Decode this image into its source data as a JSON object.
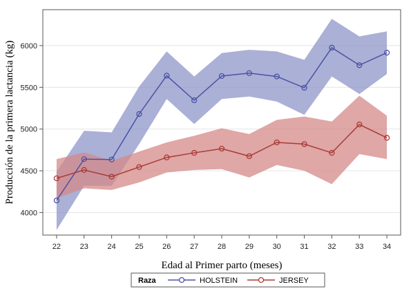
{
  "chart_data": {
    "type": "line",
    "title": "",
    "xlabel": "Edad al Primer parto (meses)",
    "ylabel": "Producción de la primera lactancia (kg)",
    "x": [
      22,
      23,
      24,
      25,
      26,
      27,
      28,
      29,
      30,
      31,
      32,
      33,
      34
    ],
    "xlim": [
      21.5,
      34.5
    ],
    "ylim": [
      3730,
      6430
    ],
    "yticks": [
      4000,
      4500,
      5000,
      5500,
      6000
    ],
    "grid": true,
    "legend_title": "Raza",
    "legend_position": "bottom",
    "series": [
      {
        "name": "HOLSTEIN",
        "color": "#4a52a3",
        "band_color": "#8f96c8",
        "values": [
          4145,
          4640,
          4635,
          5180,
          5640,
          5345,
          5635,
          5670,
          5630,
          5495,
          5975,
          5765,
          5915
        ],
        "lower": [
          3790,
          4320,
          4320,
          4820,
          5360,
          5060,
          5360,
          5390,
          5330,
          5170,
          5630,
          5420,
          5660
        ],
        "upper": [
          4490,
          4980,
          4960,
          5510,
          5930,
          5630,
          5910,
          5950,
          5930,
          5830,
          6320,
          6110,
          6170
        ]
      },
      {
        "name": "JERSEY",
        "color": "#a83a36",
        "band_color": "#d48a88",
        "values": [
          4410,
          4510,
          4430,
          4545,
          4660,
          4715,
          4765,
          4675,
          4840,
          4820,
          4715,
          5055,
          4895
        ],
        "lower": [
          4170,
          4290,
          4270,
          4360,
          4480,
          4510,
          4520,
          4420,
          4570,
          4500,
          4340,
          4700,
          4640
        ],
        "upper": [
          4640,
          4720,
          4620,
          4730,
          4840,
          4920,
          5010,
          4940,
          5110,
          5150,
          5090,
          5400,
          5160
        ]
      }
    ]
  }
}
